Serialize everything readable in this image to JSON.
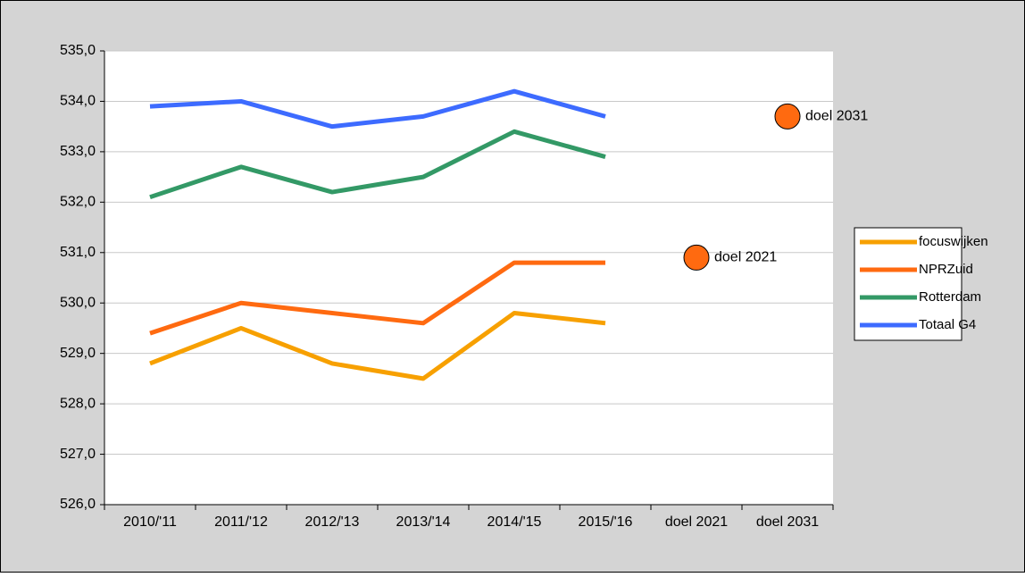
{
  "chart_data": {
    "type": "line",
    "categories": [
      "2010/'11",
      "2011/'12",
      "2012/'13",
      "2013/'14",
      "2014/'15",
      "2015/'16",
      "doel 2021",
      "doel 2031"
    ],
    "series": [
      {
        "name": "focuswijken",
        "color": "#f7a000",
        "values": [
          528.8,
          529.5,
          528.8,
          528.5,
          529.8,
          529.6,
          null,
          null
        ]
      },
      {
        "name": "NPRZuid",
        "color": "#ff6a10",
        "values": [
          529.4,
          530.0,
          529.8,
          529.6,
          530.8,
          530.8,
          null,
          null
        ]
      },
      {
        "name": "Rotterdam",
        "color": "#339966",
        "values": [
          532.1,
          532.7,
          532.2,
          532.5,
          533.4,
          532.9,
          null,
          null
        ]
      },
      {
        "name": "Totaal G4",
        "color": "#3d6bff",
        "values": [
          533.9,
          534.0,
          533.5,
          533.7,
          534.2,
          533.7,
          null,
          null
        ]
      }
    ],
    "annotations": [
      {
        "text": "doel 2021",
        "value": 530.9,
        "color": "#ff6a10"
      },
      {
        "text": "doel 2031",
        "value": 533.7,
        "color": "#ff6a10"
      }
    ],
    "ylim": [
      526,
      535
    ],
    "yticks": [
      {
        "value": 526,
        "label": "526,0"
      },
      {
        "value": 527,
        "label": "527,0"
      },
      {
        "value": 528,
        "label": "528,0"
      },
      {
        "value": 529,
        "label": "529,0"
      },
      {
        "value": 530,
        "label": "530,0"
      },
      {
        "value": 531,
        "label": "531,0"
      },
      {
        "value": 532,
        "label": "532,0"
      },
      {
        "value": 533,
        "label": "533,0"
      },
      {
        "value": 534,
        "label": "534,0"
      },
      {
        "value": 535,
        "label": "535,0"
      }
    ],
    "grid": true,
    "legend": "right"
  }
}
